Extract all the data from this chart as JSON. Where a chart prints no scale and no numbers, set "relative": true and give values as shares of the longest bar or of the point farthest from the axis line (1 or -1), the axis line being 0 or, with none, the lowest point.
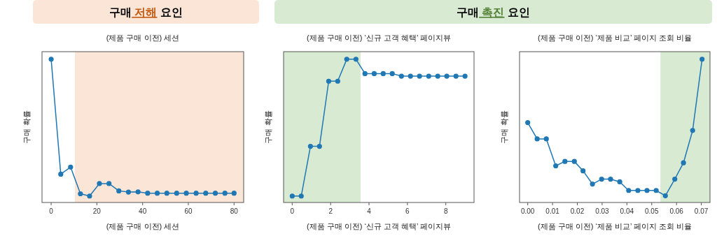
{
  "chart_data": [
    {
      "type": "line",
      "title": "(제품 구매 이전) 세션",
      "xlabel": "(제품 구매 이전) 세션",
      "ylabel": "구매 확률",
      "relative": true,
      "marker": "circle",
      "tick_labels": "x",
      "color": "#1f77b4",
      "annotations": [
        "구매 저해 요인"
      ],
      "x": [
        0,
        4.2,
        8.5,
        12.8,
        16.8,
        21.1,
        25.3,
        29.6,
        33.8,
        38,
        42.2,
        46.4,
        50.6,
        54.9,
        59.1,
        63.4,
        67.6,
        71.8,
        76,
        80
      ],
      "values": [
        1,
        0.198,
        0.247,
        0.061,
        0.045,
        0.132,
        0.132,
        0.081,
        0.073,
        0.074,
        0.065,
        0.065,
        0.065,
        0.065,
        0.065,
        0.065,
        0.065,
        0.065,
        0.065,
        0.065
      ],
      "xlim": [
        -4,
        84.2
      ],
      "xticks": [
        0,
        20,
        40,
        60,
        80
      ],
      "bands": [
        {
          "axis": "x",
          "from": 10.4,
          "to": 84.2,
          "color": "#fbe5d6"
        }
      ]
    },
    {
      "type": "line",
      "title": "(제품 구매 이전) ‘신규 고객 혜택’ 페이지뷰",
      "xlabel": "(제품 구매 이전) ‘신규 고객 혜택’ 페이지뷰",
      "ylabel": "구매 확률",
      "relative": true,
      "marker": "circle",
      "tick_labels": "x",
      "color": "#1f77b4",
      "annotations": [
        "구매 촉진 요인"
      ],
      "x": [
        0,
        0.47,
        0.95,
        1.42,
        1.9,
        2.37,
        2.84,
        3.32,
        3.79,
        4.27,
        4.74,
        5.21,
        5.69,
        6.16,
        6.63,
        7.11,
        7.58,
        8.05,
        8.53,
        9
      ],
      "values": [
        0.045,
        0.045,
        0.392,
        0.392,
        0.847,
        0.847,
        1,
        1,
        0.9,
        0.9,
        0.9,
        0.9,
        0.882,
        0.882,
        0.882,
        0.882,
        0.882,
        0.882,
        0.882,
        0.882
      ],
      "xlim": [
        -0.45,
        9.47
      ],
      "xticks": [
        0,
        2,
        4,
        6,
        8
      ],
      "bands": [
        {
          "axis": "x",
          "from": -0.45,
          "to": 3.56,
          "color": "#d9ead3"
        }
      ]
    },
    {
      "type": "line",
      "title": "(제품 구매 이전) ‘제품 비교’ 페이지 조회 비율",
      "xlabel": "(제품 구매 이전) ‘제품 비교’ 페이지 조회 비율",
      "ylabel": "구매 확률",
      "relative": true,
      "marker": "circle",
      "tick_labels": "x",
      "color": "#1f77b4",
      "x": [
        0,
        0.0038,
        0.0075,
        0.0113,
        0.015,
        0.0188,
        0.0223,
        0.0261,
        0.0298,
        0.0334,
        0.0371,
        0.0407,
        0.0444,
        0.0481,
        0.0518,
        0.0555,
        0.0593,
        0.0628,
        0.0665,
        0.0703
      ],
      "values": [
        0.558,
        0.444,
        0.444,
        0.256,
        0.287,
        0.287,
        0.221,
        0.129,
        0.163,
        0.163,
        0.144,
        0.084,
        0.084,
        0.084,
        0.084,
        0.047,
        0.163,
        0.277,
        0.503,
        1
      ],
      "xlim": [
        -0.0033,
        0.0735
      ],
      "xticks": [
        {
          "value": 0,
          "label": "0.00"
        },
        {
          "value": 0.01,
          "label": "0.01"
        },
        {
          "value": 0.02,
          "label": "0.02"
        },
        {
          "value": 0.03,
          "label": "0.03"
        },
        {
          "value": 0.04,
          "label": "0.04"
        },
        {
          "value": 0.05,
          "label": "0.05"
        },
        {
          "value": 0.06,
          "label": "0.06"
        },
        {
          "value": 0.07,
          "label": "0.07"
        }
      ],
      "bands": [
        {
          "axis": "x",
          "from": 0.0535,
          "to": 0.0735,
          "color": "#d9ead3"
        }
      ]
    }
  ]
}
